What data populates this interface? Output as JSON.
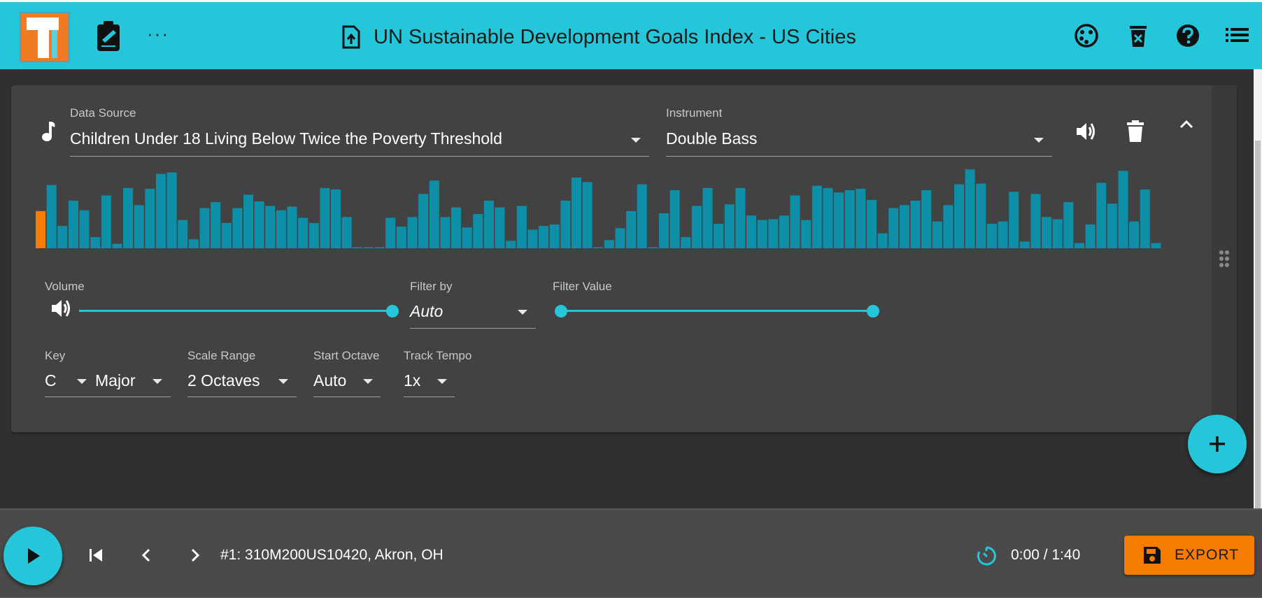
{
  "app": {
    "title": "UN Sustainable Development Goals Index - US Cities",
    "more_label": "···",
    "accent_color": "#26c6da",
    "export_color": "#f57c00"
  },
  "track": {
    "data_source": {
      "label": "Data Source",
      "value": "Children Under 18 Living Below Twice the Poverty Threshold"
    },
    "instrument": {
      "label": "Instrument",
      "value": "Double Bass"
    },
    "volume": {
      "label": "Volume",
      "level": 1.0
    },
    "filter_by": {
      "label": "Filter by",
      "value": "Auto"
    },
    "filter_value": {
      "label": "Filter Value",
      "min": 0,
      "max": 1
    },
    "key": {
      "label": "Key",
      "value": "C",
      "mode": "Major"
    },
    "scale_range": {
      "label": "Scale Range",
      "value": "2 Octaves"
    },
    "start_octave": {
      "label": "Start Octave",
      "value": "Auto"
    },
    "track_tempo": {
      "label": "Track Tempo",
      "value": "1x"
    }
  },
  "chart_data": {
    "type": "bar",
    "highlight_index": 0,
    "highlight_color": "#f57c00",
    "bar_color": "#0e8fa8",
    "values": [
      50,
      85,
      30,
      64,
      51,
      15,
      71,
      6,
      81,
      58,
      80,
      100,
      102,
      38,
      12,
      54,
      62,
      34,
      54,
      72,
      63,
      57,
      51,
      56,
      41,
      34,
      81,
      79,
      42,
      1,
      1,
      1,
      41,
      29,
      42,
      73,
      91,
      42,
      55,
      28,
      46,
      64,
      55,
      10,
      57,
      25,
      30,
      32,
      64,
      95,
      89,
      1,
      11,
      27,
      50,
      86,
      1,
      47,
      78,
      15,
      57,
      81,
      33,
      59,
      81,
      44,
      38,
      39,
      44,
      71,
      38,
      84,
      81,
      75,
      78,
      80,
      65,
      20,
      54,
      58,
      64,
      78,
      36,
      58,
      86,
      106,
      87,
      33,
      36,
      76,
      9,
      73,
      42,
      39,
      62,
      7,
      32,
      88,
      60,
      104,
      36,
      79,
      7
    ],
    "ylim": [
      0,
      110
    ]
  },
  "player": {
    "current_track": "#1: 310M200US10420, Akron, OH",
    "time": "0:00 / 1:40",
    "export_label": "EXPORT"
  }
}
